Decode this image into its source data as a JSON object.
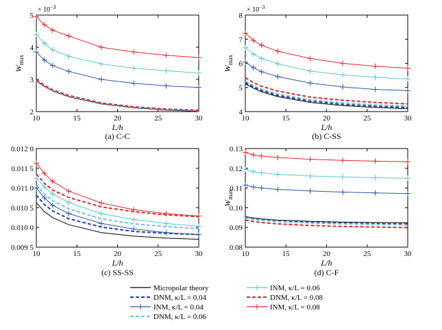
{
  "colors": {
    "micro": "#000000",
    "dnm004": "#1f3f9f",
    "inm004": "#2f55a8",
    "dnm006": "#6fc2dc",
    "inm006": "#5cc4cc",
    "dnm008": "#e0262b",
    "inm008": "#e0262b"
  },
  "legend": [
    {
      "key": "micro",
      "label": "Micropolar theory",
      "style": "solid",
      "marker": false
    },
    {
      "key": "dnm004",
      "label": "DNM, κ/L = 0.04",
      "style": "dashed",
      "marker": false
    },
    {
      "key": "inm004",
      "label": "INM, κ/L = 0.04",
      "style": "solid",
      "marker": true
    },
    {
      "key": "dnm006",
      "label": "DNM, κ/L = 0.06",
      "style": "dashed",
      "marker": false
    },
    {
      "key": "inm006",
      "label": "INM, κ/L = 0.06",
      "style": "solid",
      "marker": true
    },
    {
      "key": "dnm008",
      "label": "DNM, κ/L = 0.08",
      "style": "dashed",
      "marker": false
    },
    {
      "key": "inm008",
      "label": "INM, κ/L = 0.08",
      "style": "solid",
      "marker": true
    }
  ],
  "chart_data": [
    {
      "type": "line",
      "caption": "(a) C-C",
      "xlabel": "L/h",
      "ylabel": "W_max",
      "ylabel_main": "W",
      "ylabel_sub": "max",
      "multiplier": "× 10",
      "multiplier_exp": "−3",
      "xlim": [
        10,
        30
      ],
      "ylim": [
        2,
        5
      ],
      "xticks": [
        10,
        15,
        20,
        25,
        30
      ],
      "yticks": [
        2,
        3,
        4,
        5
      ],
      "ytick_labels": [
        "2",
        "3",
        "4",
        "5"
      ],
      "x": [
        10,
        11,
        12,
        14,
        18,
        22,
        26,
        30
      ],
      "series": [
        {
          "key": "micro",
          "values": [
            2.95,
            2.78,
            2.64,
            2.46,
            2.24,
            2.12,
            2.05,
            2.01
          ]
        },
        {
          "key": "dnm004",
          "values": [
            2.96,
            2.79,
            2.65,
            2.47,
            2.25,
            2.13,
            2.06,
            2.02
          ]
        },
        {
          "key": "inm004",
          "values": [
            3.85,
            3.6,
            3.43,
            3.25,
            3.0,
            2.88,
            2.8,
            2.75
          ]
        },
        {
          "key": "dnm006",
          "values": [
            2.97,
            2.8,
            2.66,
            2.48,
            2.26,
            2.14,
            2.07,
            2.03
          ]
        },
        {
          "key": "inm006",
          "values": [
            4.4,
            4.12,
            3.92,
            3.72,
            3.48,
            3.35,
            3.27,
            3.2
          ]
        },
        {
          "key": "dnm008",
          "values": [
            2.99,
            2.82,
            2.68,
            2.5,
            2.27,
            2.15,
            2.08,
            2.04
          ]
        },
        {
          "key": "inm008",
          "values": [
            4.95,
            4.7,
            4.53,
            4.35,
            4.0,
            3.85,
            3.75,
            3.68
          ]
        }
      ]
    },
    {
      "type": "line",
      "caption": "(b) C-SS",
      "xlabel": "L/h",
      "ylabel": "W_max",
      "ylabel_main": "W",
      "ylabel_sub": "max",
      "multiplier": "× 10",
      "multiplier_exp": "−3",
      "xlim": [
        10,
        30
      ],
      "ylim": [
        4,
        8
      ],
      "xticks": [
        10,
        15,
        20,
        25,
        30
      ],
      "yticks": [
        4,
        5,
        6,
        7,
        8
      ],
      "ytick_labels": [
        "4",
        "5",
        "6",
        "7",
        "8"
      ],
      "x": [
        10,
        11,
        12,
        14,
        18,
        22,
        26,
        30
      ],
      "series": [
        {
          "key": "micro",
          "values": [
            5.15,
            4.97,
            4.82,
            4.62,
            4.38,
            4.25,
            4.17,
            4.12
          ]
        },
        {
          "key": "dnm004",
          "values": [
            5.2,
            5.02,
            4.87,
            4.67,
            4.43,
            4.3,
            4.22,
            4.17
          ]
        },
        {
          "key": "inm004",
          "values": [
            6.05,
            5.82,
            5.65,
            5.45,
            5.18,
            5.02,
            4.92,
            4.87
          ]
        },
        {
          "key": "dnm006",
          "values": [
            5.26,
            5.08,
            4.93,
            4.73,
            4.49,
            4.36,
            4.28,
            4.23
          ]
        },
        {
          "key": "inm006",
          "values": [
            6.65,
            6.38,
            6.2,
            5.98,
            5.68,
            5.52,
            5.42,
            5.35
          ]
        },
        {
          "key": "dnm008",
          "values": [
            5.4,
            5.2,
            5.05,
            4.85,
            4.6,
            4.47,
            4.38,
            4.32
          ]
        },
        {
          "key": "inm008",
          "values": [
            7.25,
            6.95,
            6.75,
            6.5,
            6.2,
            6.0,
            5.88,
            5.8
          ]
        }
      ]
    },
    {
      "type": "line",
      "caption": "(c) SS-SS",
      "xlabel": "L/h",
      "ylabel": "",
      "xlim": [
        10,
        30
      ],
      "ylim": [
        0.0095,
        0.012
      ],
      "xticks": [
        10,
        15,
        20,
        25,
        30
      ],
      "yticks": [
        0.0095,
        0.01,
        0.0105,
        0.011,
        0.0115,
        0.012
      ],
      "ytick_labels": [
        "0.009 5",
        "0.010 0",
        "0.010 5",
        "0.011 0",
        "0.011 5",
        "0.012 0"
      ],
      "x": [
        10,
        11,
        12,
        14,
        18,
        22,
        26,
        30
      ],
      "series": [
        {
          "key": "micro",
          "values": [
            0.01063,
            0.0104,
            0.01025,
            0.01007,
            0.00987,
            0.00978,
            0.00973,
            0.0097
          ]
        },
        {
          "key": "dnm004",
          "values": [
            0.01082,
            0.01058,
            0.01042,
            0.01022,
            0.01001,
            0.0099,
            0.00985,
            0.00982
          ]
        },
        {
          "key": "inm004",
          "values": [
            0.011,
            0.01075,
            0.01056,
            0.01035,
            0.0101,
            0.00996,
            0.00987,
            0.00982
          ]
        },
        {
          "key": "dnm006",
          "values": [
            0.01108,
            0.01085,
            0.01068,
            0.01047,
            0.01022,
            0.01009,
            0.01002,
            0.00997
          ]
        },
        {
          "key": "inm006",
          "values": [
            0.01125,
            0.01103,
            0.01085,
            0.01063,
            0.01035,
            0.0102,
            0.0101,
            0.01003
          ]
        },
        {
          "key": "dnm008",
          "values": [
            0.01135,
            0.01112,
            0.01095,
            0.01076,
            0.01052,
            0.0104,
            0.01032,
            0.01027
          ]
        },
        {
          "key": "inm008",
          "values": [
            0.01163,
            0.01137,
            0.01117,
            0.01092,
            0.01062,
            0.01045,
            0.01035,
            0.01029
          ]
        }
      ]
    },
    {
      "type": "line",
      "caption": "(d) C-F",
      "xlabel": "L/h",
      "ylabel": "W_max",
      "ylabel_main": "W",
      "ylabel_sub": "max",
      "xlim": [
        10,
        30
      ],
      "ylim": [
        0.08,
        0.13
      ],
      "xticks": [
        10,
        15,
        20,
        25,
        30
      ],
      "yticks": [
        0.08,
        0.09,
        0.1,
        0.11,
        0.12,
        0.13
      ],
      "ytick_labels": [
        "0.08",
        "0.09",
        "0.10",
        "0.11",
        "0.12",
        "0.13"
      ],
      "x": [
        10,
        11,
        12,
        14,
        18,
        22,
        26,
        30
      ],
      "series": [
        {
          "key": "micro",
          "values": [
            0.0955,
            0.0948,
            0.0943,
            0.0937,
            0.0931,
            0.0927,
            0.0925,
            0.0924
          ]
        },
        {
          "key": "dnm004",
          "values": [
            0.0952,
            0.0944,
            0.0939,
            0.0933,
            0.0926,
            0.0922,
            0.0919,
            0.0918
          ]
        },
        {
          "key": "inm004",
          "values": [
            0.1115,
            0.1105,
            0.11,
            0.1093,
            0.1085,
            0.1079,
            0.1075,
            0.1072
          ]
        },
        {
          "key": "dnm006",
          "values": [
            0.0948,
            0.0941,
            0.0936,
            0.093,
            0.0922,
            0.0918,
            0.0915,
            0.0913
          ]
        },
        {
          "key": "inm006",
          "values": [
            0.1195,
            0.1183,
            0.1177,
            0.1169,
            0.1161,
            0.1156,
            0.1152,
            0.115
          ]
        },
        {
          "key": "dnm008",
          "values": [
            0.0937,
            0.093,
            0.0925,
            0.0918,
            0.091,
            0.0905,
            0.0902,
            0.0899
          ]
        },
        {
          "key": "inm008",
          "values": [
            0.128,
            0.1268,
            0.1262,
            0.1255,
            0.1246,
            0.124,
            0.1236,
            0.1233
          ]
        }
      ]
    }
  ]
}
